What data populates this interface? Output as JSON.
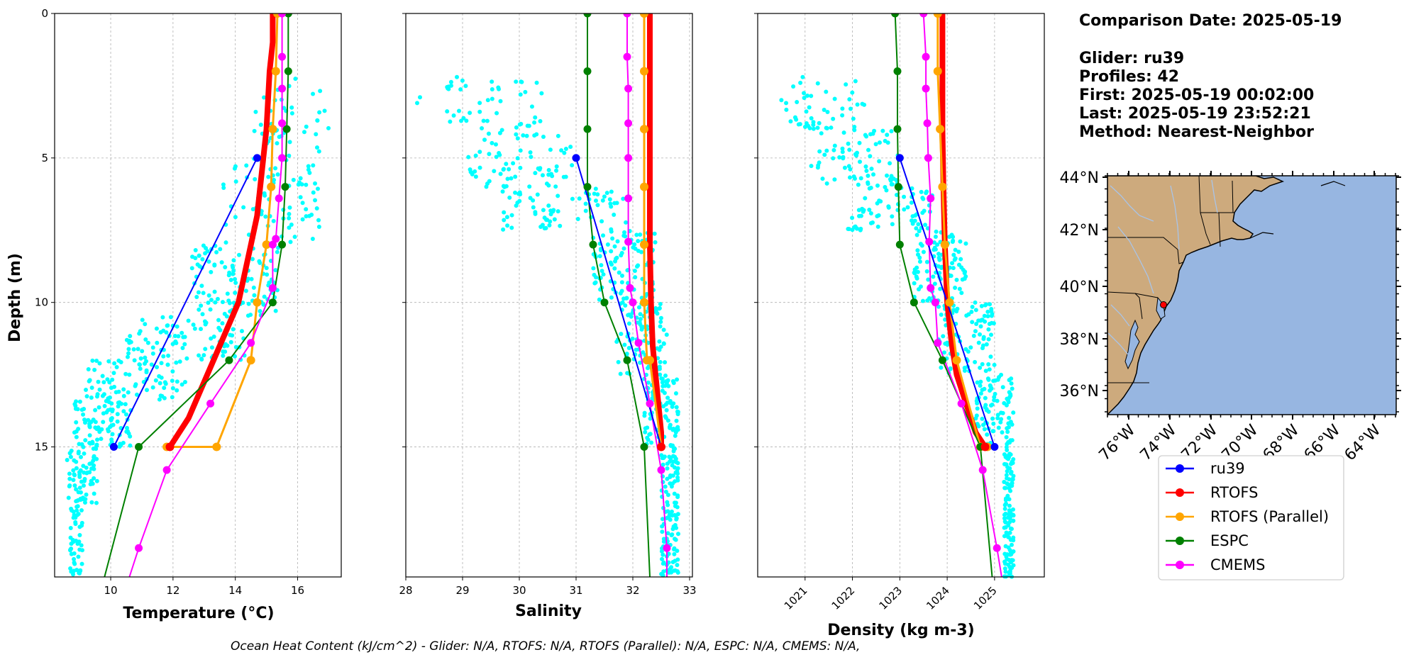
{
  "info": {
    "comparison_date": "Comparison Date: 2025-05-19",
    "glider": "Glider: ru39",
    "profiles": "Profiles: 42",
    "first": "First: 2025-05-19 00:02:00",
    "last": "Last: 2025-05-19 23:52:21",
    "method": "Method: Nearest-Neighbor"
  },
  "ohc_text": "Ocean Heat Content (kJ/cm^2) - Glider: N/A,  RTOFS: N/A,  RTOFS (Parallel): N/A,  ESPC: N/A,  CMEMS: N/A,",
  "colors": {
    "ru39": "#0000ff",
    "RTOFS": "#ff0000",
    "RTOFS (Parallel)": "#ffa500",
    "ESPC": "#008000",
    "CMEMS": "#ff00ff",
    "scatter": "#00ffff",
    "land": "#cdaa7d",
    "ocean": "#97b6e1",
    "rivers": "#a9c4e8",
    "grid": "#b0b0b0"
  },
  "legend": {
    "placement": "below map",
    "entries": [
      "ru39",
      "RTOFS",
      "RTOFS (Parallel)",
      "ESPC",
      "CMEMS"
    ]
  },
  "chart_data": [
    {
      "type": "line",
      "id": "temperature",
      "xlabel": "Temperature (°C)",
      "ylabel": "Depth (m)",
      "xlim": [
        8.2,
        17.4
      ],
      "ylim": [
        19.5,
        0
      ],
      "xticks": [
        10,
        12,
        14,
        16
      ],
      "xtick_labels": [
        "10",
        "12",
        "14",
        "16"
      ],
      "yticks": [
        0,
        5,
        10,
        15
      ],
      "ytick_labels": [
        "0",
        "5",
        "10",
        "15"
      ],
      "grid": true,
      "scatter": {
        "name": "glider observations",
        "bands": [
          {
            "d0": 2.2,
            "d1": 5.0,
            "lo": 14.6,
            "hi": 17.0,
            "n": 40
          },
          {
            "d0": 5.0,
            "d1": 8.0,
            "lo": 13.6,
            "hi": 16.7,
            "n": 80
          },
          {
            "d0": 8.0,
            "d1": 10.5,
            "lo": 12.6,
            "hi": 15.4,
            "n": 110
          },
          {
            "d0": 10.5,
            "d1": 12.0,
            "lo": 10.5,
            "hi": 14.3,
            "n": 90
          },
          {
            "d0": 12.0,
            "d1": 13.4,
            "lo": 9.2,
            "hi": 12.5,
            "n": 80
          },
          {
            "d0": 13.4,
            "d1": 15.0,
            "lo": 8.8,
            "hi": 10.7,
            "n": 90
          },
          {
            "d0": 15.0,
            "d1": 17.0,
            "lo": 8.6,
            "hi": 9.6,
            "n": 70
          },
          {
            "d0": 17.0,
            "d1": 19.5,
            "lo": 8.7,
            "hi": 9.1,
            "n": 50
          }
        ]
      },
      "series": [
        {
          "name": "RTOFS",
          "width": 8,
          "markers": false,
          "x": [
            15.2,
            15.2,
            15.1,
            15.05,
            15.0,
            14.9,
            14.8,
            14.7,
            14.5,
            14.1,
            13.3,
            12.5,
            11.9
          ],
          "y": [
            0,
            1,
            2,
            3,
            4,
            5,
            6,
            7,
            8,
            10,
            12,
            14,
            15
          ]
        },
        {
          "name": "RTOFS (Parallel)",
          "width": 3,
          "x": [
            15.35,
            15.3,
            15.2,
            15.15,
            15.0,
            14.7,
            14.5,
            13.4,
            11.8
          ],
          "y": [
            0,
            2,
            4,
            6,
            8,
            10,
            12,
            15,
            15
          ]
        },
        {
          "name": "ESPC",
          "width": 2,
          "x": [
            15.7,
            15.7,
            15.65,
            15.6,
            15.5,
            15.2,
            13.8,
            10.9,
            9.8
          ],
          "y": [
            0,
            2,
            4,
            6,
            8,
            10,
            12,
            15,
            19.5
          ]
        },
        {
          "name": "CMEMS",
          "width": 2,
          "x": [
            15.5,
            15.5,
            15.5,
            15.5,
            15.5,
            15.4,
            15.3,
            15.2,
            15.2,
            14.5,
            13.2,
            11.8,
            10.9,
            10.6
          ],
          "y": [
            0,
            1.5,
            2.6,
            3.8,
            5.0,
            6.4,
            7.8,
            8.0,
            9.5,
            11.4,
            13.5,
            15.8,
            18.5,
            19.5
          ]
        },
        {
          "name": "ru39",
          "width": 2,
          "x": [
            14.7,
            10.1
          ],
          "y": [
            5,
            15
          ]
        }
      ]
    },
    {
      "type": "line",
      "id": "salinity",
      "xlabel": "Salinity",
      "ylabel": "",
      "xlim": [
        28.0,
        33.05
      ],
      "ylim": [
        19.5,
        0
      ],
      "xticks": [
        28,
        29,
        30,
        31,
        32,
        33
      ],
      "xtick_labels": [
        "28",
        "29",
        "30",
        "31",
        "32",
        "33"
      ],
      "yticks": [
        0,
        5,
        10,
        15
      ],
      "ytick_labels": [],
      "grid": true,
      "scatter": {
        "name": "glider observations",
        "bands": [
          {
            "d0": 2.3,
            "d1": 4.0,
            "lo": 28.7,
            "hi": 30.4,
            "n": 45
          },
          {
            "d0": 4.0,
            "d1": 6.0,
            "lo": 29.1,
            "hi": 31.0,
            "n": 70
          },
          {
            "d0": 6.0,
            "d1": 7.5,
            "lo": 29.7,
            "hi": 31.9,
            "n": 70
          },
          {
            "d0": 7.5,
            "d1": 10.0,
            "lo": 31.3,
            "hi": 32.4,
            "n": 100
          },
          {
            "d0": 10.0,
            "d1": 12.5,
            "lo": 31.7,
            "hi": 32.6,
            "n": 100
          },
          {
            "d0": 12.5,
            "d1": 15.0,
            "lo": 32.2,
            "hi": 32.8,
            "n": 90
          },
          {
            "d0": 15.0,
            "d1": 19.5,
            "lo": 32.5,
            "hi": 32.8,
            "n": 120
          }
        ],
        "extra": [
          [
            28.25,
            2.9
          ],
          [
            28.2,
            3.1
          ],
          [
            28.9,
            2.2
          ],
          [
            28.8,
            2.5
          ]
        ]
      },
      "series": [
        {
          "name": "RTOFS",
          "width": 8,
          "markers": false,
          "x": [
            32.3,
            32.3,
            32.3,
            32.3,
            32.3,
            32.32,
            32.35,
            32.4,
            32.45,
            32.5,
            32.5
          ],
          "y": [
            0,
            2,
            4,
            6,
            8,
            10,
            11.5,
            12.5,
            13.5,
            14.5,
            15
          ]
        },
        {
          "name": "RTOFS (Parallel)",
          "width": 3,
          "x": [
            32.2,
            32.2,
            32.2,
            32.2,
            32.2,
            32.2,
            32.25,
            32.3,
            32.5
          ],
          "y": [
            0,
            2,
            4,
            6,
            8,
            10,
            12,
            12,
            15
          ]
        },
        {
          "name": "ESPC",
          "width": 2,
          "x": [
            31.2,
            31.2,
            31.2,
            31.2,
            31.3,
            31.5,
            31.9,
            32.2,
            32.3
          ],
          "y": [
            0,
            2,
            4,
            6,
            8,
            10,
            12,
            15,
            19.5
          ]
        },
        {
          "name": "CMEMS",
          "width": 2,
          "x": [
            31.9,
            31.9,
            31.92,
            31.92,
            31.92,
            31.92,
            31.92,
            31.95,
            32.0,
            32.1,
            32.3,
            32.5,
            32.6,
            32.6
          ],
          "y": [
            0,
            1.5,
            2.6,
            3.8,
            5.0,
            6.4,
            7.9,
            9.5,
            10.0,
            11.4,
            13.5,
            15.8,
            18.5,
            19.5
          ]
        },
        {
          "name": "ru39",
          "width": 2,
          "x": [
            31.0,
            32.5
          ],
          "y": [
            5,
            15
          ]
        }
      ]
    },
    {
      "type": "line",
      "id": "density",
      "xlabel": "Density (kg m-3)",
      "ylabel": "",
      "xlim": [
        1020.0,
        1026.05
      ],
      "ylim": [
        19.5,
        0
      ],
      "xticks": [
        1021,
        1022,
        1023,
        1024,
        1025
      ],
      "xtick_labels": [
        "1021",
        "1022",
        "1023",
        "1024",
        "1025"
      ],
      "yticks": [
        0,
        5,
        10,
        15
      ],
      "ytick_labels": [],
      "grid": true,
      "scatter": {
        "name": "glider observations",
        "bands": [
          {
            "d0": 2.3,
            "d1": 4.0,
            "lo": 1020.6,
            "hi": 1022.3,
            "n": 45
          },
          {
            "d0": 4.0,
            "d1": 6.0,
            "lo": 1021.1,
            "hi": 1023.0,
            "n": 70
          },
          {
            "d0": 6.0,
            "d1": 7.5,
            "lo": 1021.9,
            "hi": 1023.7,
            "n": 70
          },
          {
            "d0": 7.5,
            "d1": 10.0,
            "lo": 1023.3,
            "hi": 1024.4,
            "n": 100
          },
          {
            "d0": 10.0,
            "d1": 12.5,
            "lo": 1023.8,
            "hi": 1025.0,
            "n": 100
          },
          {
            "d0": 12.5,
            "d1": 15.0,
            "lo": 1024.6,
            "hi": 1025.4,
            "n": 90
          },
          {
            "d0": 15.0,
            "d1": 19.5,
            "lo": 1025.2,
            "hi": 1025.4,
            "n": 120
          }
        ],
        "extra": [
          [
            1020.5,
            3.0
          ],
          [
            1020.6,
            3.1
          ],
          [
            1020.95,
            2.2
          ],
          [
            1020.9,
            2.4
          ]
        ]
      },
      "series": [
        {
          "name": "RTOFS",
          "width": 8,
          "markers": false,
          "x": [
            1023.9,
            1023.9,
            1023.9,
            1023.92,
            1023.95,
            1024.0,
            1024.1,
            1024.2,
            1024.4,
            1024.6,
            1024.8
          ],
          "y": [
            0,
            2,
            4,
            6,
            8,
            10,
            11.5,
            12.5,
            13.5,
            14.5,
            15
          ]
        },
        {
          "name": "RTOFS (Parallel)",
          "width": 3,
          "x": [
            1023.8,
            1023.8,
            1023.85,
            1023.9,
            1023.95,
            1024.05,
            1024.2,
            1024.7,
            1024.85
          ],
          "y": [
            0,
            2,
            4,
            6,
            8,
            10,
            12,
            15,
            15
          ]
        },
        {
          "name": "ESPC",
          "width": 2,
          "x": [
            1022.9,
            1022.95,
            1022.95,
            1022.97,
            1023.0,
            1023.3,
            1023.9,
            1024.7,
            1024.95
          ],
          "y": [
            0,
            2,
            4,
            6,
            8,
            10,
            12,
            15,
            19.5
          ]
        },
        {
          "name": "CMEMS",
          "width": 2,
          "x": [
            1023.5,
            1023.55,
            1023.55,
            1023.58,
            1023.6,
            1023.65,
            1023.62,
            1023.65,
            1023.75,
            1023.8,
            1024.3,
            1024.75,
            1025.05,
            1025.15
          ],
          "y": [
            0,
            1.5,
            2.6,
            3.8,
            5.0,
            6.4,
            7.9,
            9.5,
            10.0,
            11.4,
            13.5,
            15.8,
            18.5,
            19.5
          ]
        },
        {
          "name": "ru39",
          "width": 2,
          "x": [
            1023.0,
            1025.0
          ],
          "y": [
            5,
            15
          ]
        }
      ]
    }
  ],
  "map": {
    "lon_ticks": [
      "76°W",
      "74°W",
      "72°W",
      "70°W",
      "68°W",
      "66°W",
      "64°W"
    ],
    "lat_ticks": [
      "44°N",
      "42°N",
      "40°N",
      "38°N",
      "36°N"
    ],
    "glider_marker": "red dot off the New Jersey coast"
  }
}
